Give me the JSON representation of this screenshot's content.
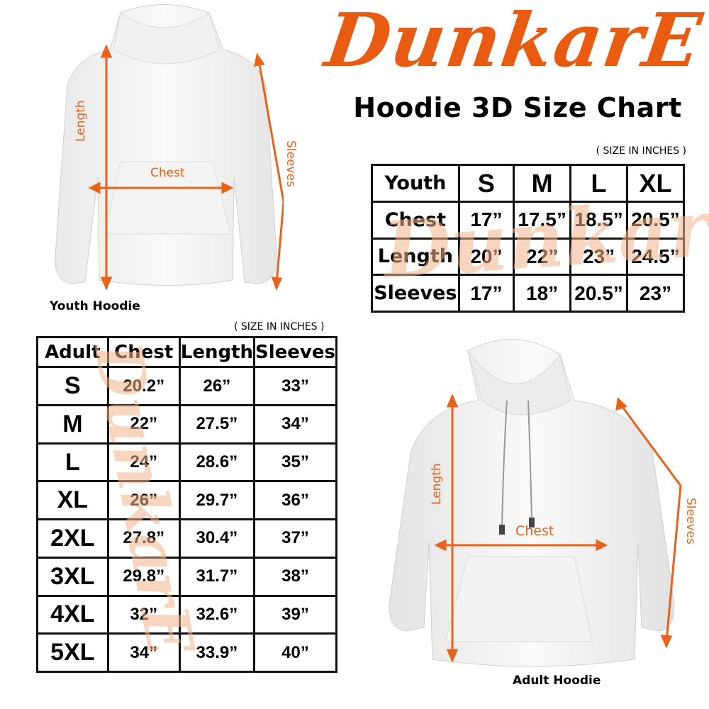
{
  "brand": {
    "logo_text": "DunkarE",
    "brand_color": "#ea5b12"
  },
  "title": "Hoodie 3D Size Chart",
  "youth": {
    "caption": "Youth Hoodie",
    "unit_note": "( SIZE IN INCHES )",
    "labels": {
      "length": "Length",
      "chest": "Chest",
      "sleeves": "Sleeves"
    },
    "table": {
      "header": [
        "Youth",
        "S",
        "M",
        "L",
        "XL"
      ],
      "rows": [
        {
          "label": "Chest",
          "values": [
            "17”",
            "17.5”",
            "18.5”",
            "20.5”"
          ]
        },
        {
          "label": "Length",
          "values": [
            "20”",
            "22”",
            "23”",
            "24.5”"
          ]
        },
        {
          "label": "Sleeves",
          "values": [
            "17”",
            "18”",
            "20.5”",
            "23”"
          ]
        }
      ]
    }
  },
  "adult": {
    "caption": "Adult Hoodie",
    "unit_note": "( SIZE IN INCHES )",
    "labels": {
      "length": "Length",
      "chest": "Chest",
      "sleeves": "Sleeves"
    },
    "table": {
      "header": [
        "Adult",
        "Chest",
        "Length",
        "Sleeves"
      ],
      "rows": [
        {
          "size": "S",
          "values": [
            "20.2”",
            "26”",
            "33”"
          ]
        },
        {
          "size": "M",
          "values": [
            "22”",
            "27.5”",
            "34”"
          ]
        },
        {
          "size": "L",
          "values": [
            "24”",
            "28.6”",
            "35”"
          ]
        },
        {
          "size": "XL",
          "values": [
            "26”",
            "29.7”",
            "36”"
          ]
        },
        {
          "size": "2XL",
          "values": [
            "27.8”",
            "30.4”",
            "37”"
          ]
        },
        {
          "size": "3XL",
          "values": [
            "29.8”",
            "31.7”",
            "38”"
          ]
        },
        {
          "size": "4XL",
          "values": [
            "32”",
            "32.6”",
            "39”"
          ]
        },
        {
          "size": "5XL",
          "values": [
            "34”",
            "33.9”",
            "40”"
          ]
        }
      ]
    }
  }
}
